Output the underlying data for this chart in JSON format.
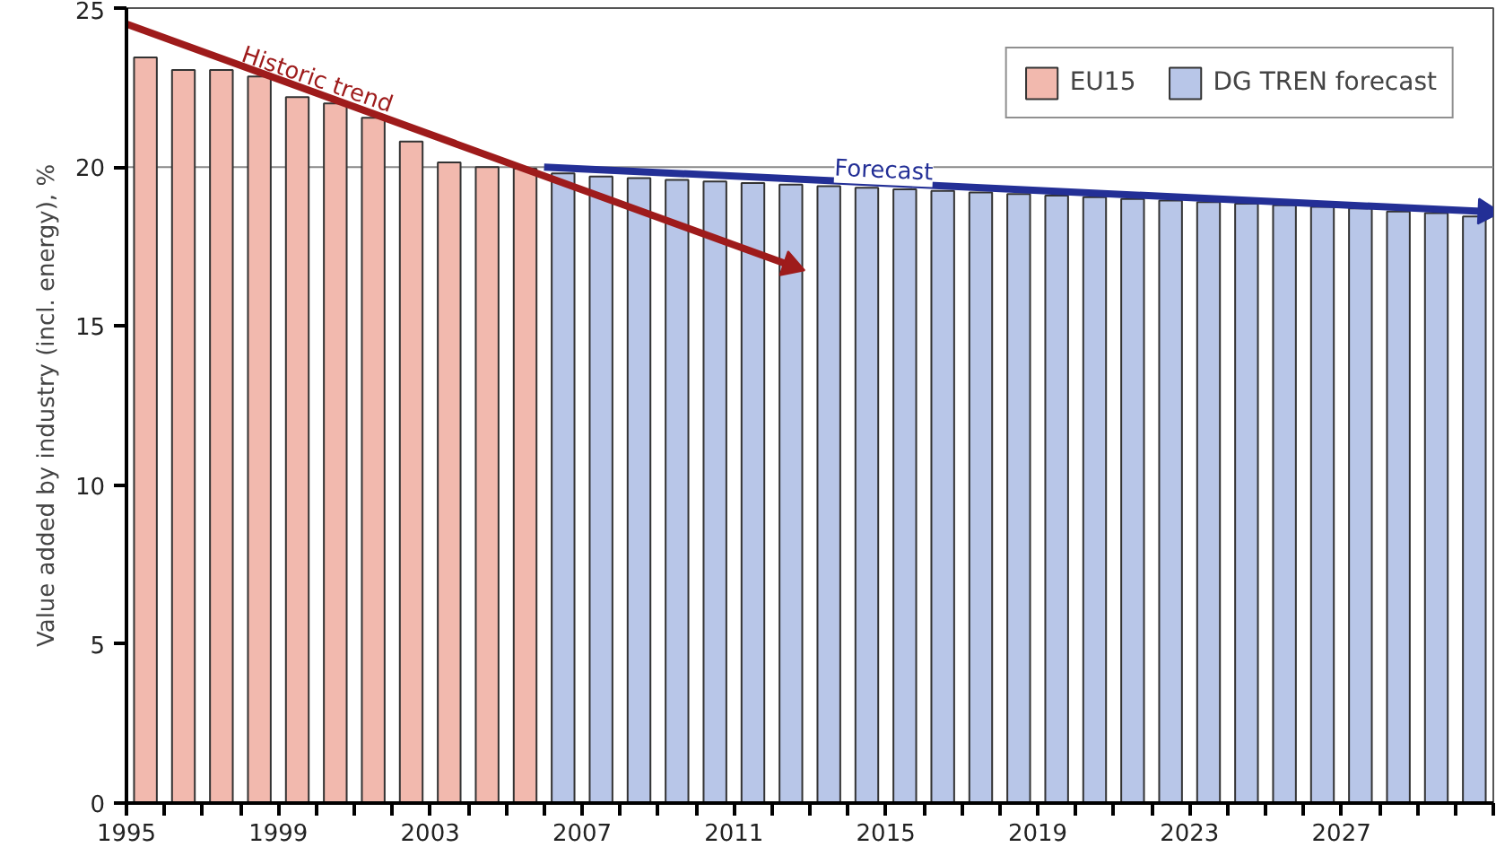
{
  "chart_data": {
    "type": "bar",
    "ylabel": "Value added by industry (incl. energy), %",
    "x": [
      1995,
      1996,
      1997,
      1998,
      1999,
      2000,
      2001,
      2002,
      2003,
      2004,
      2005,
      2006,
      2007,
      2008,
      2009,
      2010,
      2011,
      2012,
      2013,
      2014,
      2015,
      2016,
      2017,
      2018,
      2019,
      2020,
      2021,
      2022,
      2023,
      2024,
      2025,
      2026,
      2027,
      2028,
      2029,
      2030
    ],
    "series": [
      {
        "name": "EU15",
        "color": "#f2b9ae",
        "values": [
          23.45,
          23.05,
          23.05,
          22.85,
          22.2,
          22.0,
          21.55,
          20.8,
          20.15,
          20.0,
          19.95,
          null,
          null,
          null,
          null,
          null,
          null,
          null,
          null,
          null,
          null,
          null,
          null,
          null,
          null,
          null,
          null,
          null,
          null,
          null,
          null,
          null,
          null,
          null,
          null,
          null
        ]
      },
      {
        "name": "DG TREN forecast",
        "color": "#b8c6e8",
        "values": [
          null,
          null,
          null,
          null,
          null,
          null,
          null,
          null,
          null,
          null,
          null,
          19.8,
          19.7,
          19.65,
          19.6,
          19.55,
          19.5,
          19.45,
          19.4,
          19.35,
          19.3,
          19.25,
          19.2,
          19.15,
          19.1,
          19.05,
          19.0,
          18.95,
          18.9,
          18.85,
          18.8,
          18.75,
          18.7,
          18.6,
          18.55,
          18.45
        ]
      },
      {
        "type": "line",
        "name": "Historic trend",
        "color": "#9e1b1b",
        "x": [
          1995,
          2012.5
        ],
        "values": [
          24.5,
          16.9
        ]
      },
      {
        "type": "line",
        "name": "Forecast",
        "color": "#232f96",
        "x": [
          2006,
          2030.8
        ],
        "values": [
          20.0,
          18.6
        ]
      }
    ],
    "xlim": [
      1995,
      2031
    ],
    "ylim": [
      0,
      25
    ],
    "xticks": [
      {
        "value": 1995,
        "label": "1995"
      },
      {
        "value": 1996,
        "label": null
      },
      {
        "value": 1997,
        "label": null
      },
      {
        "value": 1998,
        "label": null
      },
      {
        "value": 1999,
        "label": "1999"
      },
      {
        "value": 2000,
        "label": null
      },
      {
        "value": 2001,
        "label": null
      },
      {
        "value": 2002,
        "label": null
      },
      {
        "value": 2003,
        "label": "2003"
      },
      {
        "value": 2004,
        "label": null
      },
      {
        "value": 2005,
        "label": null
      },
      {
        "value": 2006,
        "label": null
      },
      {
        "value": 2007,
        "label": "2007"
      },
      {
        "value": 2008,
        "label": null
      },
      {
        "value": 2009,
        "label": null
      },
      {
        "value": 2010,
        "label": null
      },
      {
        "value": 2011,
        "label": "2011"
      },
      {
        "value": 2012,
        "label": null
      },
      {
        "value": 2013,
        "label": null
      },
      {
        "value": 2014,
        "label": null
      },
      {
        "value": 2015,
        "label": "2015"
      },
      {
        "value": 2016,
        "label": null
      },
      {
        "value": 2017,
        "label": null
      },
      {
        "value": 2018,
        "label": null
      },
      {
        "value": 2019,
        "label": "2019"
      },
      {
        "value": 2020,
        "label": null
      },
      {
        "value": 2021,
        "label": null
      },
      {
        "value": 2022,
        "label": null
      },
      {
        "value": 2023,
        "label": "2023"
      },
      {
        "value": 2024,
        "label": null
      },
      {
        "value": 2025,
        "label": null
      },
      {
        "value": 2026,
        "label": null
      },
      {
        "value": 2027,
        "label": "2027"
      },
      {
        "value": 2028,
        "label": null
      },
      {
        "value": 2029,
        "label": null
      },
      {
        "value": 2030,
        "label": null
      },
      {
        "value": 2031,
        "label": null
      }
    ],
    "yticks": [
      0,
      5,
      10,
      15,
      20,
      25
    ],
    "ref_lines": [
      {
        "axis": "y",
        "value": 20,
        "color": "#888888"
      }
    ],
    "grid": false,
    "legend": "top right"
  }
}
